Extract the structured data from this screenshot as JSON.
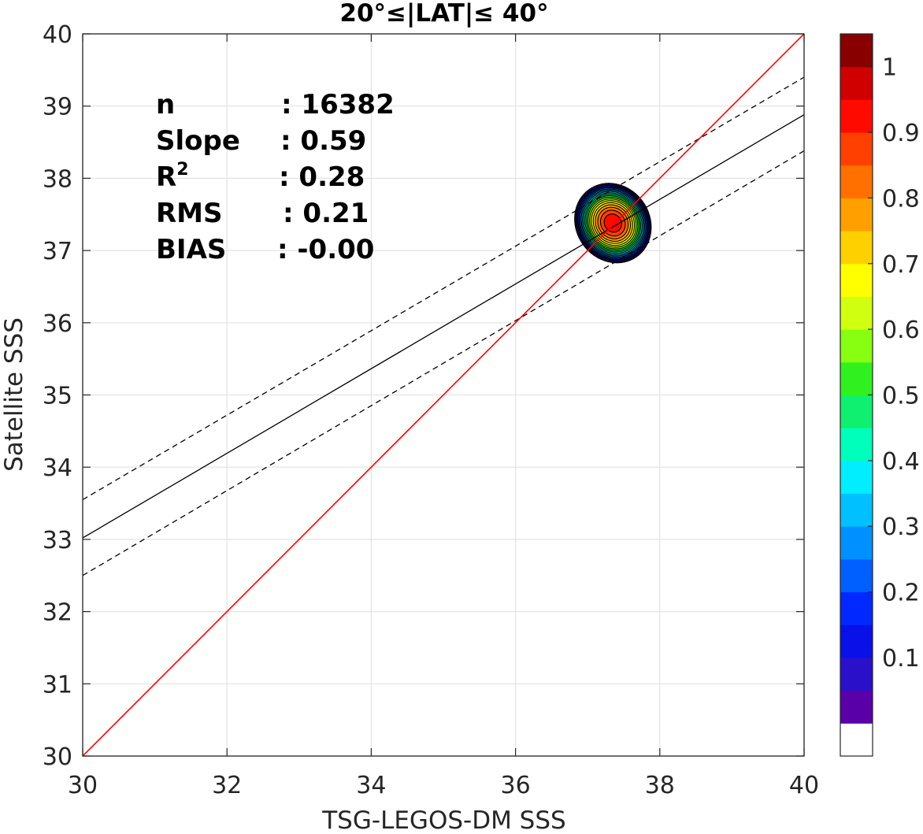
{
  "chart_data": {
    "type": "scatter",
    "title": "20°≤|LAT|≤ 40°",
    "xlabel": "TSG-LEGOS-DM SSS",
    "ylabel": "Satellite SSS",
    "xlim": [
      30,
      40
    ],
    "ylim": [
      30,
      40
    ],
    "xticks": [
      "30",
      "32",
      "34",
      "36",
      "38",
      "40"
    ],
    "yticks": [
      "30",
      "31",
      "32",
      "33",
      "34",
      "35",
      "36",
      "37",
      "38",
      "39",
      "40"
    ],
    "grid": true,
    "stats": [
      {
        "label": "n",
        "sup": "",
        "value": ": 16382"
      },
      {
        "label": "Slope",
        "sup": "",
        "value": ": 0.59"
      },
      {
        "label": "R",
        "sup": "2",
        "value": ": 0.28"
      },
      {
        "label": "RMS",
        "sup": "",
        "value": ": 0.21"
      },
      {
        "label": "BIAS",
        "sup": "",
        "value": ": -0.00"
      }
    ],
    "lines": {
      "one_to_one": {
        "points": [
          [
            30,
            30
          ],
          [
            40,
            40
          ]
        ],
        "color": "#ff0000"
      },
      "fit": {
        "points": [
          [
            30,
            33.02
          ],
          [
            40,
            38.88
          ]
        ],
        "color": "#000000"
      },
      "fit_upper": {
        "points": [
          [
            30,
            33.55
          ],
          [
            40,
            39.4
          ]
        ],
        "color": "#000000",
        "dash": true
      },
      "fit_lower": {
        "points": [
          [
            30,
            32.5
          ],
          [
            40,
            38.38
          ]
        ],
        "color": "#000000",
        "dash": true
      }
    },
    "density": {
      "center": [
        37.35,
        37.38
      ],
      "outer_radius": [
        0.51,
        0.57
      ],
      "rotation_deg": 35
    },
    "colorbar": {
      "ticks": [
        "0.1",
        "0.2",
        "0.3",
        "0.4",
        "0.5",
        "0.6",
        "0.7",
        "0.8",
        "0.9",
        "1"
      ],
      "levels": 20,
      "colors": [
        "#ffffff",
        "#5a00a8",
        "#2a10c8",
        "#0a10e8",
        "#0028ff",
        "#0060ff",
        "#0090ff",
        "#00c0ff",
        "#00eeff",
        "#00ffbb",
        "#10f070",
        "#30f020",
        "#88ff10",
        "#d0ff10",
        "#ffff00",
        "#ffd000",
        "#ffa000",
        "#ff7000",
        "#ff4000",
        "#ff0a00",
        "#d00000",
        "#880000"
      ]
    }
  }
}
